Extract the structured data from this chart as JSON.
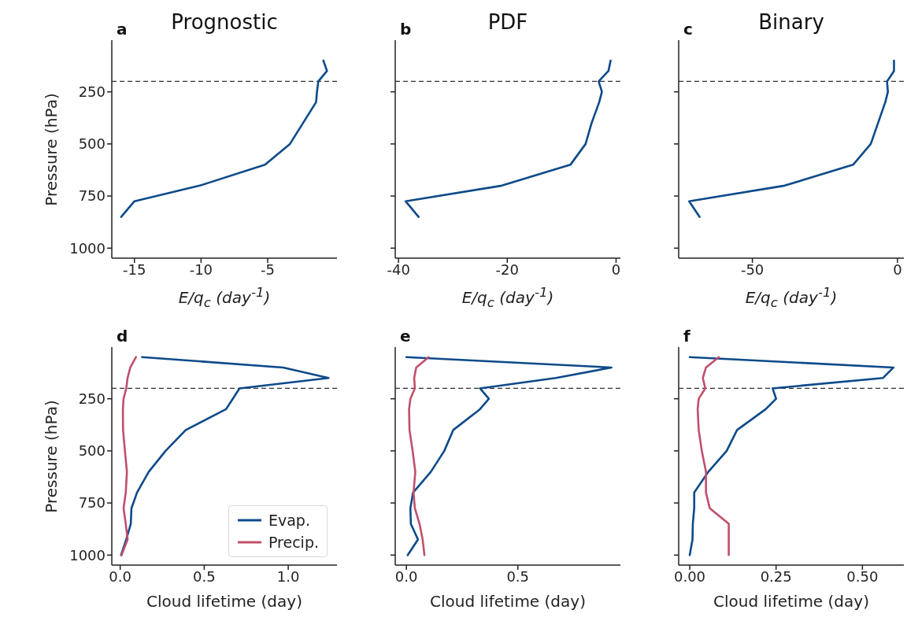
{
  "chart_data": [
    {
      "type": "line",
      "title": "Prognostic",
      "annotations": [
        "a"
      ],
      "xlabel": "E/q$_{c}$ (day$^{-1}$)",
      "ylabel": "Pressure (hPa)",
      "orientation": "horizontal",
      "x": [
        100,
        150,
        200,
        250,
        300,
        400,
        500,
        600,
        700,
        775,
        850
      ],
      "xlim": [
        -16.7,
        0.2
      ],
      "xticks": [
        -15,
        -10,
        -5
      ],
      "ylim": [
        1048,
        2
      ],
      "yticks": [
        250,
        500,
        750,
        1000
      ],
      "ref_lines": [
        {
          "axis": "y",
          "value": 200,
          "color": "#333333",
          "line_style": "dashed"
        }
      ],
      "series": [
        {
          "color": "#0d4a8a",
          "values": [
            -0.82,
            -0.55,
            -1.2,
            -1.3,
            -1.37,
            -2.35,
            -3.33,
            -5.2,
            -10.1,
            -15.0,
            -16.0
          ]
        }
      ]
    },
    {
      "type": "line",
      "title": "PDF",
      "annotations": [
        "b"
      ],
      "xlabel": "E/q$_{c}$ (day$^{-1}$)",
      "orientation": "horizontal",
      "x": [
        100,
        150,
        200,
        250,
        300,
        400,
        500,
        600,
        700,
        775,
        850
      ],
      "xlim": [
        -40.6,
        0.8
      ],
      "xticks": [
        -40,
        -20,
        0
      ],
      "ylim": [
        1048,
        2
      ],
      "yticks": [
        250,
        500,
        750,
        1000
      ],
      "tick_labels": "x",
      "ref_lines": [
        {
          "axis": "y",
          "value": 200,
          "color": "#333333",
          "line_style": "dashed"
        }
      ],
      "series": [
        {
          "color": "#0d4a8a",
          "values": [
            -1.0,
            -1.4,
            -3.2,
            -2.6,
            -3.1,
            -4.5,
            -5.6,
            -8.4,
            -21.0,
            -38.7,
            -36.3
          ]
        }
      ]
    },
    {
      "type": "line",
      "title": "Binary",
      "annotations": [
        "c"
      ],
      "xlabel": "E/q$_{c}$ (day$^{-1}$)",
      "orientation": "horizontal",
      "x": [
        100,
        150,
        200,
        250,
        300,
        400,
        500,
        600,
        700,
        775,
        850
      ],
      "xlim": [
        -75.4,
        2.2
      ],
      "xticks": [
        -50,
        0
      ],
      "ylim": [
        1048,
        2
      ],
      "yticks": [
        250,
        500,
        750,
        1000
      ],
      "tick_labels": "x",
      "ref_lines": [
        {
          "axis": "y",
          "value": 200,
          "color": "#333333",
          "line_style": "dashed"
        }
      ],
      "series": [
        {
          "color": "#0d4a8a",
          "values": [
            -1.2,
            -1.2,
            -3.6,
            -3.3,
            -4.2,
            -6.7,
            -9.2,
            -15.3,
            -38.9,
            -71.8,
            -68.2
          ]
        }
      ]
    },
    {
      "type": "line",
      "annotations": [
        "d"
      ],
      "xlabel": "Cloud lifetime (day)",
      "ylabel": "Pressure (hPa)",
      "orientation": "horizontal",
      "x": [
        50,
        100,
        150,
        200,
        250,
        300,
        400,
        500,
        600,
        700,
        775,
        850,
        925,
        1000
      ],
      "xlim": [
        -0.05,
        1.29
      ],
      "xticks": [
        {
          "value": 0,
          "label": "0.0"
        },
        {
          "value": 0.5,
          "label": "0.5"
        },
        {
          "value": 1,
          "label": "1.0"
        }
      ],
      "ylim": [
        1048,
        2
      ],
      "yticks": [
        250,
        500,
        750,
        1000
      ],
      "legend": "bottom right",
      "ref_lines": [
        {
          "axis": "y",
          "value": 200,
          "color": "#333333",
          "line_style": "dashed"
        }
      ],
      "series": [
        {
          "name": "Evap.",
          "color": "#0d4a8a",
          "values": [
            0.13,
            0.97,
            1.24,
            0.71,
            0.67,
            0.63,
            0.39,
            0.27,
            0.17,
            0.1,
            0.067,
            0.063,
            0.036,
            0.005
          ]
        },
        {
          "name": "Precip.",
          "color": "#c0506a",
          "values": [
            0.094,
            0.06,
            0.044,
            0.036,
            0.02,
            0.016,
            0.017,
            0.028,
            0.04,
            0.033,
            0.02,
            0.033,
            0.044,
            0.008
          ]
        }
      ]
    },
    {
      "type": "line",
      "annotations": [
        "e"
      ],
      "xlabel": "Cloud lifetime (day)",
      "orientation": "horizontal",
      "x": [
        50,
        100,
        150,
        200,
        250,
        300,
        400,
        500,
        600,
        700,
        775,
        850,
        925,
        1000
      ],
      "xlim": [
        -0.05,
        0.96
      ],
      "xticks": [
        {
          "value": 0,
          "label": "0.0"
        },
        {
          "value": 0.5,
          "label": "0.5"
        }
      ],
      "ylim": [
        1048,
        2
      ],
      "yticks": [
        250,
        500,
        750,
        1000
      ],
      "tick_labels": "x",
      "ref_lines": [
        {
          "axis": "y",
          "value": 200,
          "color": "#333333",
          "line_style": "dashed"
        }
      ],
      "series": [
        {
          "color": "#0d4a8a",
          "values": [
            0.0,
            0.92,
            0.67,
            0.33,
            0.37,
            0.33,
            0.21,
            0.17,
            0.11,
            0.03,
            0.018,
            0.02,
            0.052,
            0.006
          ]
        },
        {
          "color": "#c0506a",
          "values": [
            0.1,
            0.044,
            0.035,
            0.038,
            0.018,
            0.012,
            0.014,
            0.028,
            0.04,
            0.032,
            0.038,
            0.059,
            0.073,
            0.081
          ]
        }
      ]
    },
    {
      "type": "line",
      "annotations": [
        "f"
      ],
      "xlabel": "Cloud lifetime (day)",
      "orientation": "horizontal",
      "x": [
        50,
        100,
        150,
        200,
        250,
        300,
        400,
        500,
        600,
        700,
        775,
        850,
        925,
        1000
      ],
      "xlim": [
        -0.032,
        0.62
      ],
      "xticks": [
        {
          "value": 0,
          "label": "0.00"
        },
        {
          "value": 0.25,
          "label": "0.25"
        },
        {
          "value": 0.5,
          "label": "0.50"
        }
      ],
      "ylim": [
        1048,
        2
      ],
      "yticks": [
        250,
        500,
        750,
        1000
      ],
      "tick_labels": "x",
      "ref_lines": [
        {
          "axis": "y",
          "value": 200,
          "color": "#333333",
          "line_style": "dashed"
        }
      ],
      "series": [
        {
          "color": "#0d4a8a",
          "values": [
            0.0,
            0.59,
            0.56,
            0.24,
            0.25,
            0.22,
            0.137,
            0.107,
            0.054,
            0.013,
            0.013,
            0.009,
            0.008,
            0.0
          ]
        },
        {
          "color": "#c0506a",
          "values": [
            0.084,
            0.047,
            0.038,
            0.045,
            0.026,
            0.023,
            0.026,
            0.035,
            0.047,
            0.047,
            0.058,
            0.113,
            0.113,
            0.113
          ]
        }
      ]
    }
  ]
}
